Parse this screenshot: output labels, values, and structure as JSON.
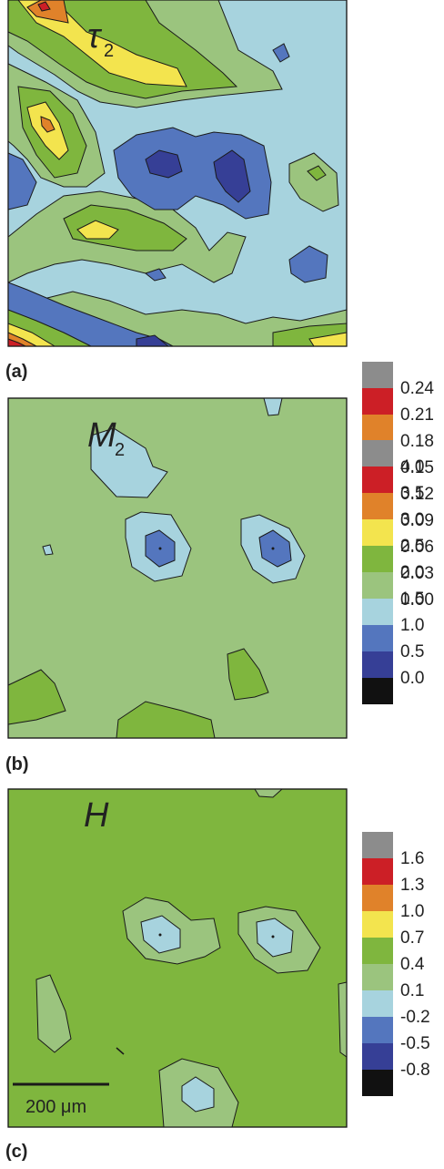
{
  "figure": {
    "panels": [
      {
        "id": "a",
        "label": "(a)",
        "variable": "τ",
        "subscript": "2",
        "colorbar_ticks": [
          "0.24",
          "0.21",
          "0.18",
          "0.15",
          "0.12",
          "0.09",
          "0.06",
          "0.03",
          "0.00"
        ]
      },
      {
        "id": "b",
        "label": "(b)",
        "variable": "M",
        "subscript": "2",
        "colorbar_ticks": [
          "4.0",
          "3.5",
          "3.0",
          "2.5",
          "2.0",
          "1.5",
          "1.0",
          "0.5",
          "0.0"
        ]
      },
      {
        "id": "c",
        "label": "(c)",
        "variable": "H",
        "subscript": "",
        "colorbar_ticks": [
          "1.6",
          "1.3",
          "1.0",
          "0.7",
          "0.4",
          "0.1",
          "-0.2",
          "-0.5",
          "-0.8"
        ]
      }
    ],
    "scale_bar": {
      "label": "200 μm"
    }
  },
  "colors": {
    "level_colors": [
      "#8c8c8c",
      "#cc1f26",
      "#e0822a",
      "#f3e44e",
      "#7fb63e",
      "#9bc47e",
      "#a7d3de",
      "#5476be",
      "#363f96",
      "#111111"
    ],
    "contour_line": "#1a1a1a"
  },
  "chart_data": [
    {
      "type": "heatmap",
      "panel": "(a)",
      "title": "τ2",
      "levels": [
        0.0,
        0.03,
        0.06,
        0.09,
        0.12,
        0.15,
        0.18,
        0.21,
        0.24
      ],
      "background_level_range": [
        0.06,
        0.09
      ]
    },
    {
      "type": "heatmap",
      "panel": "(b)",
      "title": "M2",
      "levels": [
        0.0,
        0.5,
        1.0,
        1.5,
        2.0,
        2.5,
        3.0,
        3.5,
        4.0
      ],
      "background_level_range": [
        1.5,
        2.0
      ]
    },
    {
      "type": "heatmap",
      "panel": "(c)",
      "title": "H",
      "levels": [
        -0.8,
        -0.5,
        -0.2,
        0.1,
        0.4,
        0.7,
        1.0,
        1.3,
        1.6
      ],
      "background_level_range": [
        0.4,
        0.7
      ]
    }
  ]
}
